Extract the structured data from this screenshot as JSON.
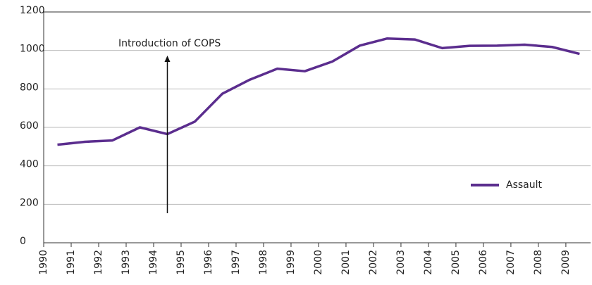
{
  "chart_data": {
    "type": "line",
    "categories": [
      "1990",
      "1991",
      "1992",
      "1993",
      "1994",
      "1995",
      "1996",
      "1997",
      "1998",
      "1999",
      "2000",
      "2001",
      "2002",
      "2003",
      "2004",
      "2005",
      "2006",
      "2007",
      "2008",
      "2009"
    ],
    "series": [
      {
        "name": "Assault",
        "color": "#5b2d8e",
        "values": [
          510,
          525,
          532,
          600,
          565,
          630,
          775,
          848,
          905,
          892,
          942,
          1025,
          1062,
          1057,
          1012,
          1024,
          1025,
          1030,
          1018,
          982
        ]
      }
    ],
    "ylim": [
      0,
      1200
    ],
    "yticks": [
      0,
      200,
      400,
      600,
      800,
      1000,
      1200
    ],
    "grid": true,
    "annotation": {
      "text": "Introduction of COPS",
      "category": "1994"
    },
    "legend": "right"
  }
}
